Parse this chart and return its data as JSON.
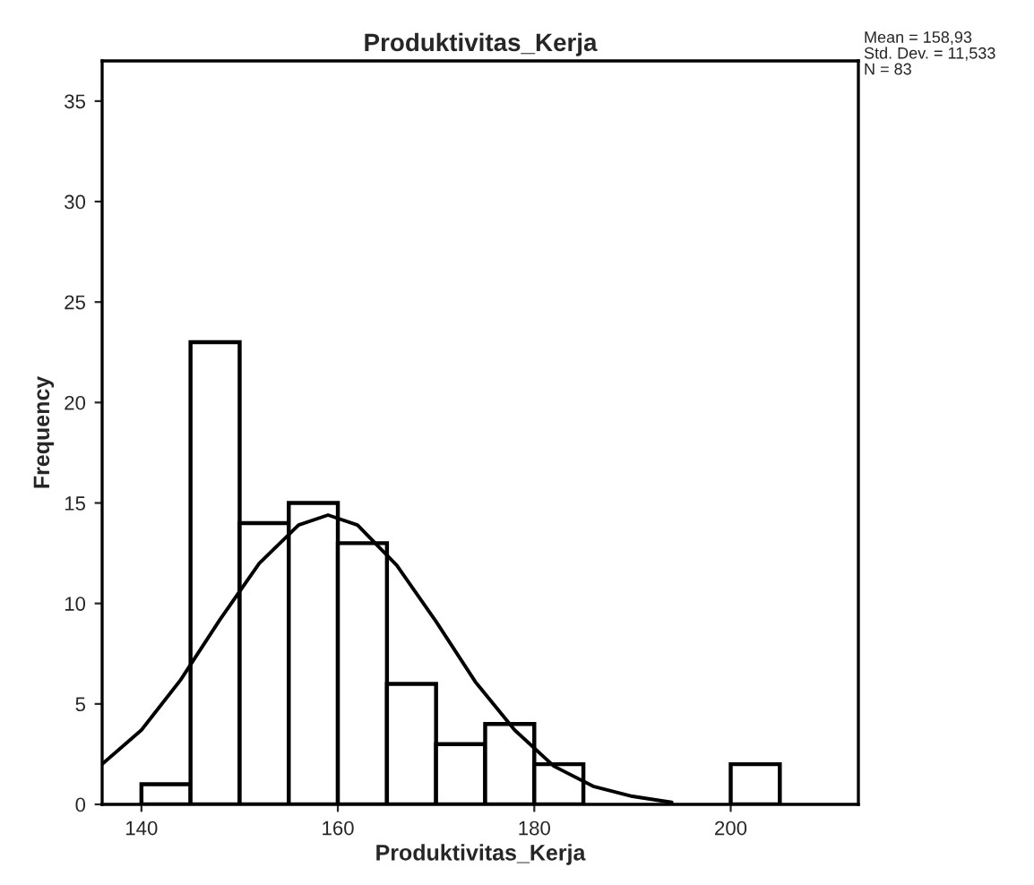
{
  "chart_data": {
    "type": "histogram",
    "title": "Produktivitas_Kerja",
    "xlabel": "Produktivitas_Kerja",
    "ylabel": "Frequency",
    "bins": [
      140,
      145,
      150,
      155,
      160,
      165,
      170,
      175,
      180,
      185,
      190,
      195,
      200,
      205
    ],
    "values": [
      1,
      23,
      14,
      15,
      13,
      6,
      3,
      4,
      2,
      0,
      0,
      0,
      2
    ],
    "color": "#ffffff",
    "series": [
      {
        "type": "line",
        "color": "#000000",
        "x": [
          136,
          140,
          144,
          148,
          152,
          156,
          159,
          162,
          166,
          170,
          174,
          178,
          182,
          186,
          190,
          194
        ],
        "values": [
          2.0,
          3.7,
          6.2,
          9.2,
          12.0,
          13.9,
          14.4,
          13.9,
          11.9,
          9.1,
          6.1,
          3.7,
          1.9,
          0.9,
          0.4,
          0.1
        ]
      }
    ],
    "xlim": [
      136,
      213
    ],
    "ylim": [
      0,
      37
    ],
    "xticks": [
      140,
      160,
      180,
      200
    ],
    "yticks": [
      0,
      5,
      10,
      15,
      20,
      25,
      30,
      35
    ],
    "grid": false,
    "legend": false,
    "annotations": [
      "Mean = 158,93",
      "Std. Dev. = 11,533",
      "N = 83"
    ]
  }
}
